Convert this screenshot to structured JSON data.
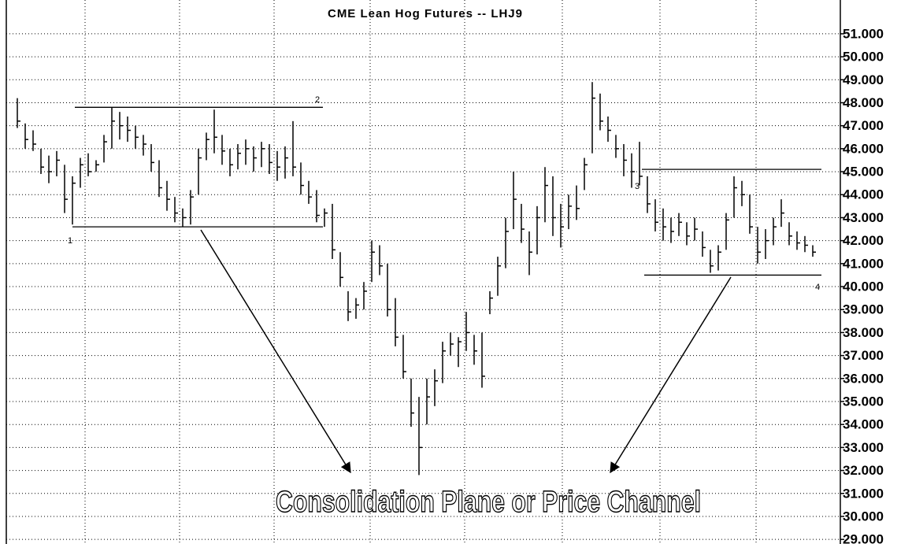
{
  "chart_data": {
    "type": "ohlc",
    "title": "CME Lean Hog Futures -- LHJ9",
    "annotation": "Consolidation Plane or Price Channel",
    "ylim": [
      28.8,
      52.47
    ],
    "yticks": [
      {
        "value": 29,
        "label": "29.000"
      },
      {
        "value": 30,
        "label": "30.000"
      },
      {
        "value": 31,
        "label": "31.000"
      },
      {
        "value": 32,
        "label": "32.000"
      },
      {
        "value": 33,
        "label": "33.000"
      },
      {
        "value": 34,
        "label": "34.000"
      },
      {
        "value": 35,
        "label": "35.000"
      },
      {
        "value": 36,
        "label": "36.000"
      },
      {
        "value": 37,
        "label": "37.000"
      },
      {
        "value": 38,
        "label": "38.000"
      },
      {
        "value": 39,
        "label": "39.000"
      },
      {
        "value": 40,
        "label": "40.000"
      },
      {
        "value": 41,
        "label": "41.000"
      },
      {
        "value": 42,
        "label": "42.000"
      },
      {
        "value": 43,
        "label": "43.000"
      },
      {
        "value": 44,
        "label": "44.000"
      },
      {
        "value": 45,
        "label": "45.000"
      },
      {
        "value": 46,
        "label": "46.000"
      },
      {
        "value": 47,
        "label": "47.000"
      },
      {
        "value": 48,
        "label": "48.000"
      },
      {
        "value": 49,
        "label": "49.000"
      },
      {
        "value": 50,
        "label": "50.000"
      },
      {
        "value": 51,
        "label": "51.000"
      }
    ],
    "grid": true,
    "color": "#000000",
    "levels": [
      {
        "value": 47.8,
        "label": "2"
      },
      {
        "value": 42.6,
        "label": "1"
      },
      {
        "value": 45.1,
        "label": "3"
      },
      {
        "value": 40.5,
        "label": "4"
      }
    ],
    "high": [
      48.2,
      47.1,
      46.8,
      46.0,
      45.7,
      45.9,
      45.3,
      44.8,
      45.6,
      45.8,
      45.5,
      46.6,
      47.8,
      47.6,
      47.4,
      47.0,
      46.6,
      46.2,
      45.5,
      44.6,
      43.9,
      43.4,
      44.2,
      46.0,
      46.7,
      47.7,
      46.6,
      46.0,
      46.2,
      46.4,
      46.1,
      46.3,
      46.2,
      45.9,
      46.1,
      47.2,
      45.4,
      44.6,
      44.2,
      43.4,
      43.6,
      41.5,
      39.8,
      39.5,
      40.2,
      42.0,
      41.8,
      41.0,
      39.5,
      37.9,
      36.0,
      35.2,
      36.0,
      36.4,
      37.6,
      38.0,
      37.8,
      38.9,
      37.9,
      38.0,
      39.8,
      41.3,
      43.0,
      45.0,
      43.6,
      42.4,
      43.5,
      45.2,
      44.8,
      43.6,
      44.0,
      44.4,
      45.6,
      48.9,
      48.4,
      47.4,
      46.6,
      46.2,
      45.8,
      46.3,
      44.8,
      43.8,
      43.4,
      43.0,
      43.2,
      42.8,
      43.0,
      42.4,
      41.6,
      41.8,
      43.2,
      44.8,
      44.6,
      44.0,
      42.6,
      42.5,
      43.0,
      43.8,
      42.8,
      42.4,
      42.2,
      41.8
    ],
    "low": [
      46.9,
      46.0,
      45.9,
      44.9,
      44.5,
      44.8,
      43.2,
      42.7,
      44.3,
      44.8,
      45.0,
      45.4,
      46.0,
      46.4,
      46.3,
      46.0,
      45.7,
      45.0,
      43.9,
      43.3,
      42.8,
      42.6,
      42.7,
      44.0,
      45.5,
      45.8,
      45.3,
      44.8,
      45.1,
      45.3,
      45.0,
      45.2,
      44.9,
      44.6,
      44.7,
      44.8,
      44.0,
      43.6,
      42.8,
      42.6,
      41.2,
      40.0,
      38.5,
      38.6,
      39.0,
      40.2,
      40.5,
      38.7,
      37.4,
      36.0,
      33.9,
      31.8,
      34.0,
      34.8,
      35.8,
      37.0,
      36.5,
      37.2,
      36.6,
      35.6,
      38.8,
      39.6,
      40.8,
      42.5,
      41.9,
      40.5,
      41.4,
      42.8,
      42.2,
      41.7,
      42.5,
      42.9,
      44.2,
      45.8,
      46.8,
      46.3,
      45.6,
      44.8,
      44.3,
      44.4,
      43.2,
      42.4,
      42.0,
      41.9,
      42.2,
      41.8,
      42.0,
      41.3,
      40.6,
      40.7,
      41.6,
      43.0,
      43.5,
      42.3,
      41.0,
      41.2,
      41.8,
      42.6,
      41.8,
      41.6,
      41.5,
      41.3
    ],
    "close": [
      47.2,
      46.4,
      46.2,
      45.2,
      45.0,
      45.5,
      43.8,
      44.5,
      45.3,
      45.0,
      45.3,
      46.3,
      47.2,
      47.0,
      46.8,
      46.5,
      46.2,
      45.4,
      44.3,
      43.8,
      43.2,
      43.0,
      43.9,
      45.6,
      46.4,
      46.5,
      45.9,
      45.3,
      45.8,
      46.0,
      45.6,
      46.0,
      45.4,
      45.2,
      45.6,
      45.2,
      44.4,
      43.9,
      43.1,
      43.2,
      41.6,
      40.4,
      38.9,
      39.2,
      39.8,
      41.5,
      40.9,
      39.0,
      37.8,
      36.3,
      34.5,
      33.0,
      35.2,
      35.9,
      37.2,
      37.5,
      37.6,
      38.0,
      37.2,
      36.1,
      39.5,
      40.9,
      42.4,
      43.8,
      42.5,
      41.5,
      43.0,
      44.4,
      43.0,
      42.6,
      43.5,
      43.4,
      45.3,
      48.2,
      47.2,
      46.8,
      46.0,
      45.5,
      45.0,
      44.8,
      43.6,
      42.8,
      42.6,
      42.4,
      42.8,
      42.2,
      42.5,
      41.7,
      40.9,
      41.5,
      42.9,
      44.3,
      44.0,
      42.6,
      41.5,
      42.0,
      42.6,
      43.2,
      42.2,
      41.9,
      41.8,
      41.5
    ]
  }
}
